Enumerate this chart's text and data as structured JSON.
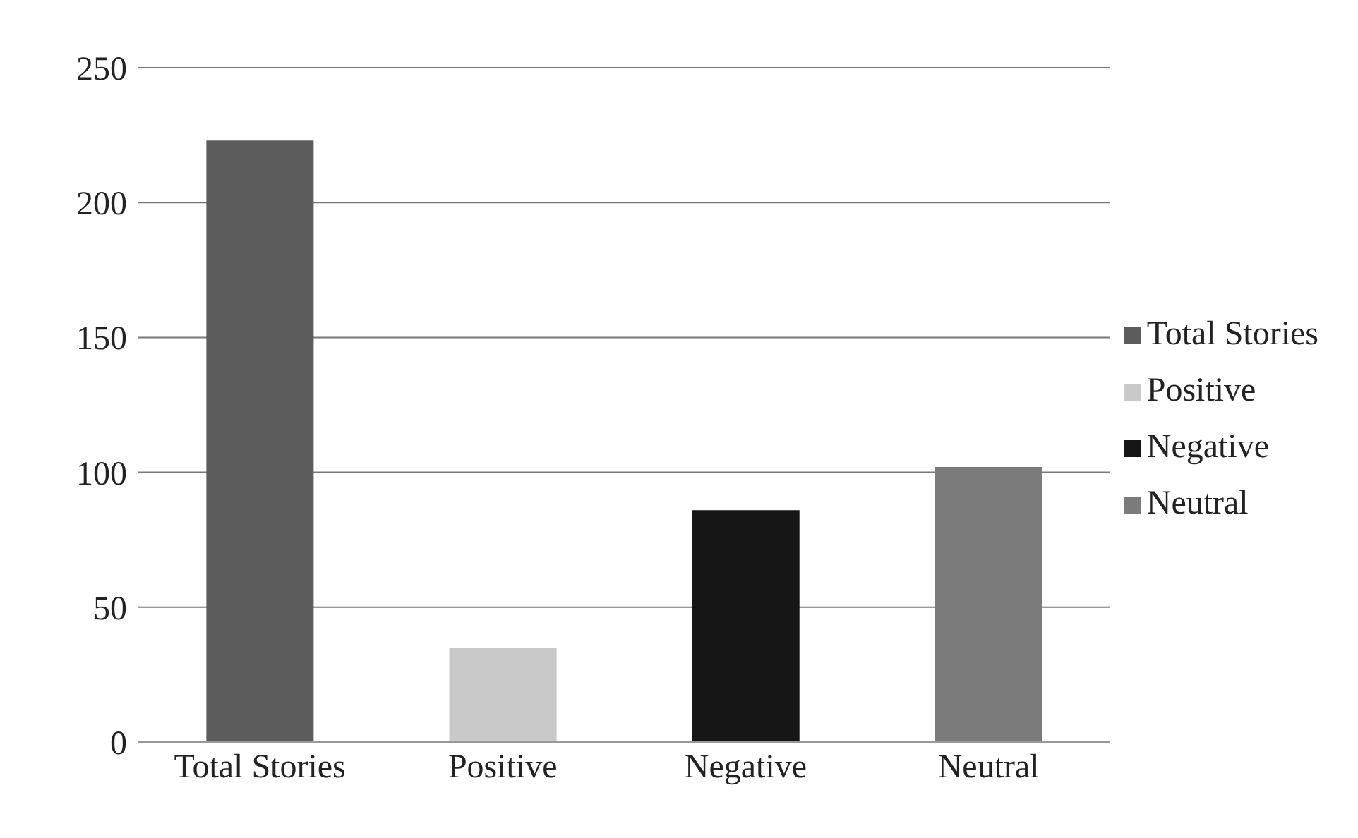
{
  "chart_data": {
    "type": "bar",
    "categories": [
      "Total Stories",
      "Positive",
      "Negative",
      "Neutral"
    ],
    "series": [
      {
        "name": "Total Stories",
        "color": "#5c5c5c",
        "values": [
          223,
          null,
          null,
          null
        ]
      },
      {
        "name": "Positive",
        "color": "#c9c9c9",
        "values": [
          null,
          35,
          null,
          null
        ]
      },
      {
        "name": "Negative",
        "color": "#161616",
        "values": [
          null,
          null,
          86,
          null
        ]
      },
      {
        "name": "Neutral",
        "color": "#7b7b7b",
        "values": [
          null,
          null,
          null,
          102
        ]
      }
    ],
    "stacked": true,
    "ylim": [
      0,
      250
    ],
    "yticks": [
      0,
      50,
      100,
      150,
      200,
      250
    ],
    "grid": "y",
    "legend": "right"
  }
}
